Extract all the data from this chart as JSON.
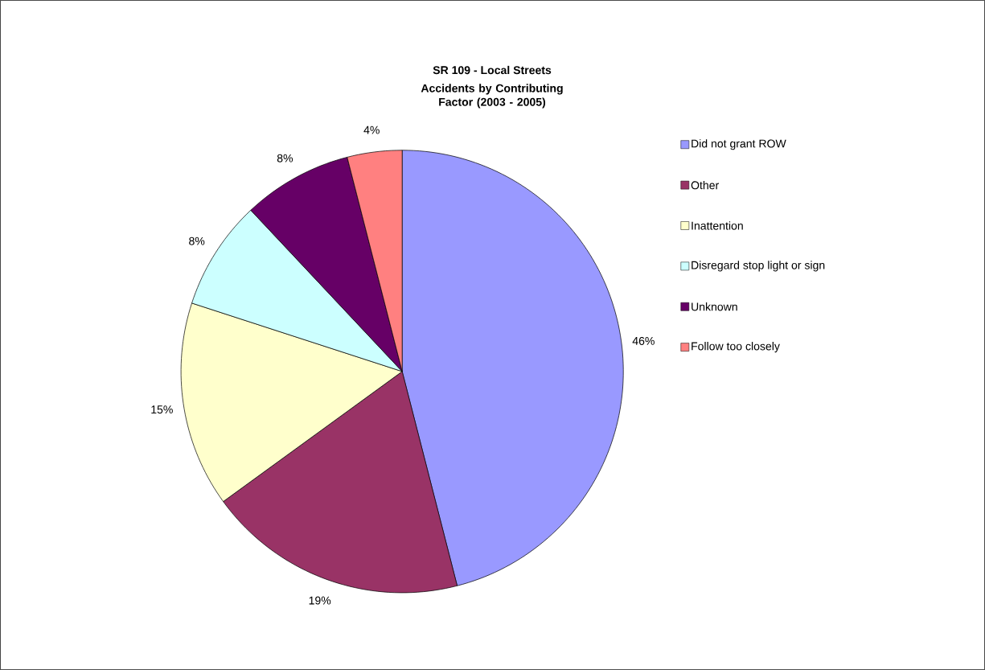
{
  "chart_data": {
    "type": "pie",
    "title": "SR 109 - Local Streets",
    "subtitle": "Accidents by Contributing Factor (2003 - 2005)",
    "categories": [
      "Did not grant ROW",
      "Other",
      "Inattention",
      "Disregard stop light or sign",
      "Unknown",
      "Follow too closely"
    ],
    "values": [
      46,
      19,
      15,
      8,
      8,
      4
    ],
    "value_labels": [
      "46%",
      "19%",
      "15%",
      "8%",
      "8%",
      "4%"
    ],
    "colors": [
      "#9999ff",
      "#993366",
      "#ffffcc",
      "#ccffff",
      "#660066",
      "#ff8080"
    ],
    "legend": "right"
  }
}
